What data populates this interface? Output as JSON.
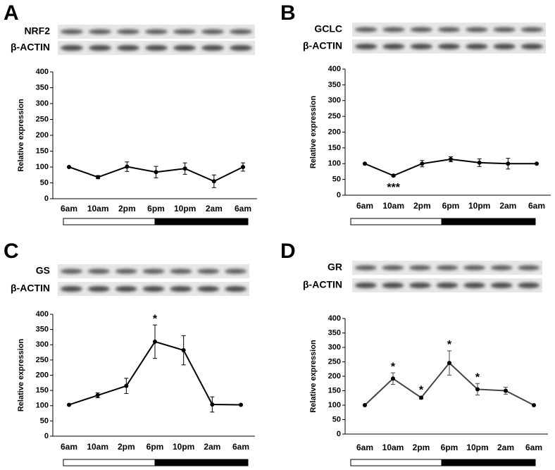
{
  "chart_data": [
    {
      "type": "line",
      "panel": "A",
      "blots": [
        "NRF2",
        "β-ACTIN"
      ],
      "y_label": "Relative expression",
      "categories": [
        "6am",
        "10am",
        "2pm",
        "6pm",
        "10pm",
        "2am",
        "6am"
      ],
      "values": [
        100,
        68,
        101,
        84,
        95,
        55,
        100
      ],
      "errors": [
        0,
        5,
        15,
        18,
        18,
        20,
        13
      ],
      "annotations": [
        null,
        null,
        null,
        null,
        null,
        null,
        null
      ],
      "annotation_position": "above",
      "color": "#000000",
      "ylim": [
        0,
        400
      ],
      "yticks": [
        0,
        50,
        100,
        150,
        200,
        250,
        300,
        350,
        400
      ]
    },
    {
      "type": "line",
      "panel": "B",
      "blots": [
        "GCLC",
        "β-ACTIN"
      ],
      "y_label": "Relative expression",
      "categories": [
        "6am",
        "10am",
        "2pm",
        "6pm",
        "10pm",
        "2am",
        "6am"
      ],
      "values": [
        100,
        62,
        100,
        114,
        103,
        100,
        100
      ],
      "errors": [
        0,
        3,
        10,
        8,
        12,
        17,
        0
      ],
      "annotations": [
        null,
        "***",
        null,
        null,
        null,
        null,
        null
      ],
      "annotation_position": "below",
      "color": "#000000",
      "ylim": [
        0,
        400
      ],
      "yticks": [
        0,
        50,
        100,
        150,
        200,
        250,
        300,
        350,
        400
      ]
    },
    {
      "type": "line",
      "panel": "C",
      "blots": [
        "GS",
        "β-ACTIN"
      ],
      "y_label": "Relative expression",
      "categories": [
        "6am",
        "10am",
        "2pm",
        "6pm",
        "10pm",
        "2am",
        "6am"
      ],
      "values": [
        103,
        134,
        165,
        310,
        282,
        104,
        103
      ],
      "errors": [
        0,
        8,
        25,
        55,
        48,
        25,
        0
      ],
      "annotations": [
        null,
        null,
        null,
        "*",
        null,
        null,
        null
      ],
      "annotation_position": "above",
      "color": "#000000",
      "ylim": [
        0,
        400
      ],
      "yticks": [
        0,
        50,
        100,
        150,
        200,
        250,
        300,
        350,
        400
      ]
    },
    {
      "type": "line",
      "panel": "D",
      "blots": [
        "GR",
        "β-ACTIN"
      ],
      "y_label": "Relative expression",
      "categories": [
        "6am",
        "10am",
        "2pm",
        "6pm",
        "10pm",
        "2am",
        "6am"
      ],
      "values": [
        100,
        192,
        126,
        246,
        155,
        150,
        100
      ],
      "errors": [
        0,
        20,
        5,
        42,
        20,
        12,
        0
      ],
      "annotations": [
        null,
        "*",
        "*",
        "*",
        "*",
        null,
        null
      ],
      "annotation_position": "above",
      "color": "#444444",
      "ylim": [
        0,
        400
      ],
      "yticks": [
        0,
        50,
        100,
        150,
        200,
        250,
        300,
        350,
        400
      ]
    }
  ]
}
